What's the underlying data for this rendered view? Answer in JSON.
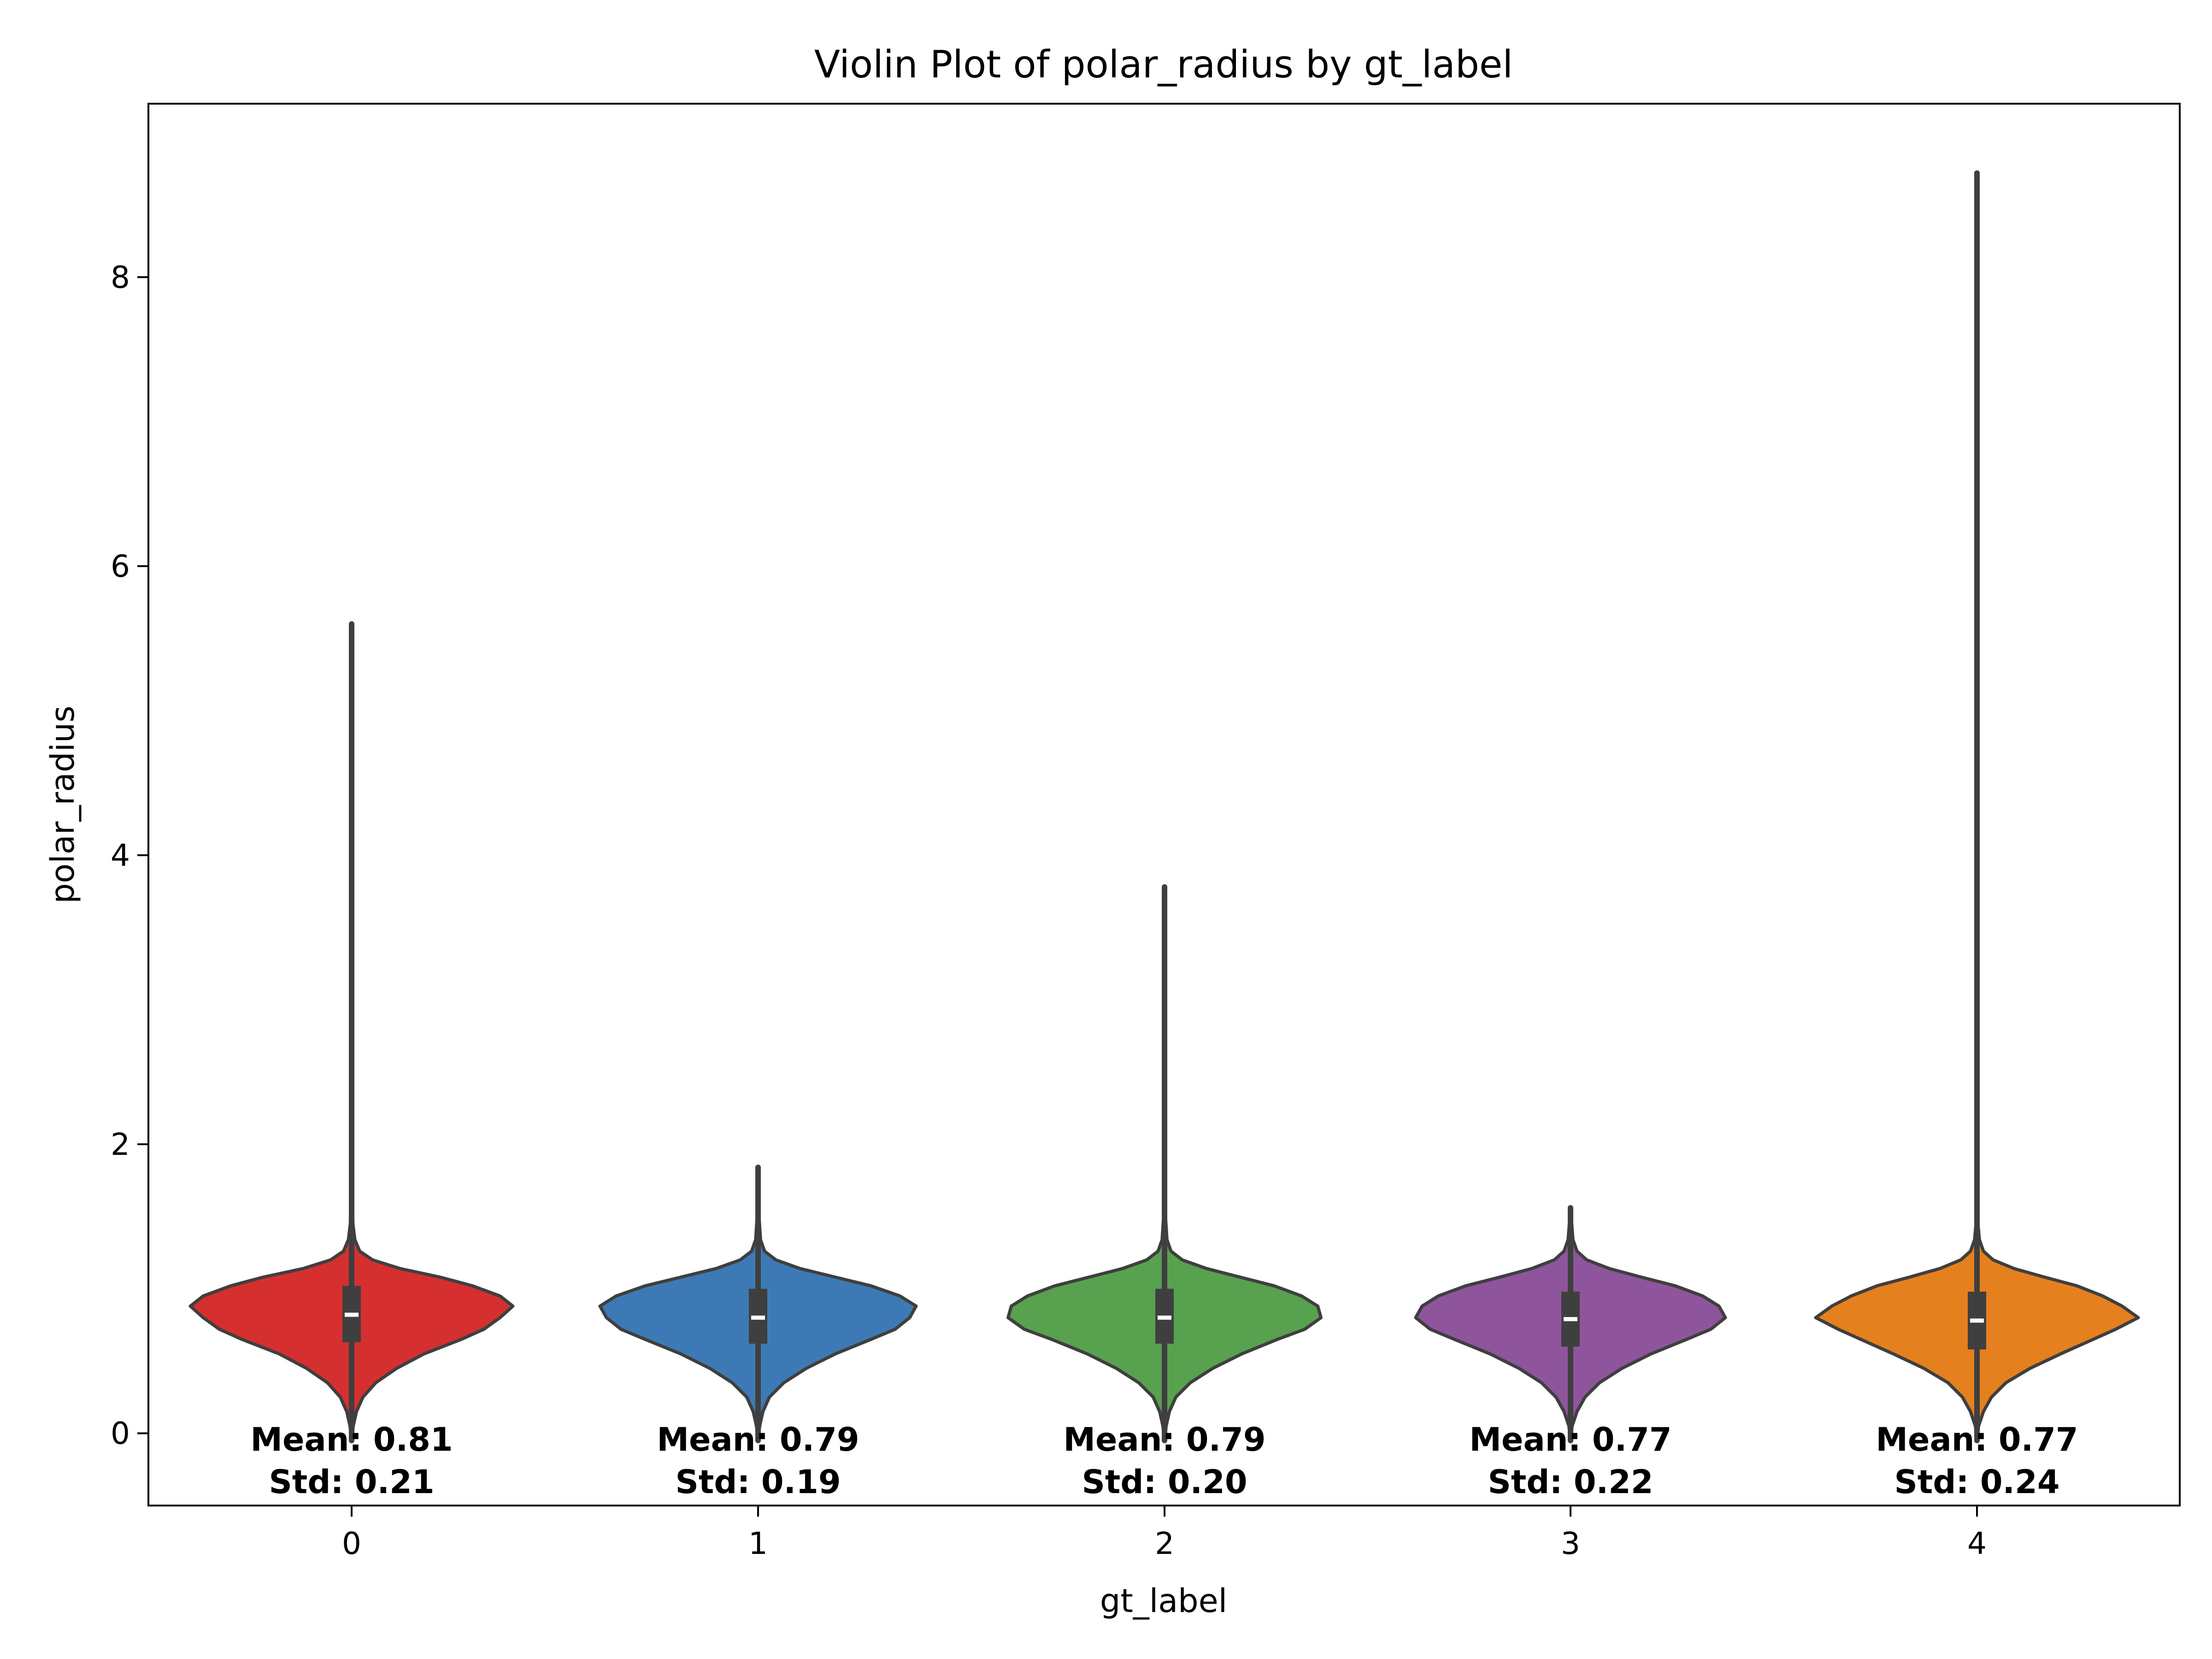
{
  "chart_data": {
    "type": "violin",
    "title": "Violin Plot of polar_radius by gt_label",
    "xlabel": "gt_label",
    "ylabel": "polar_radius",
    "categories": [
      "0",
      "1",
      "2",
      "3",
      "4"
    ],
    "ylim": [
      -0.5,
      9.2
    ],
    "yticks": [
      0,
      2,
      4,
      6,
      8
    ],
    "grid": false,
    "legend": "none",
    "violins": [
      {
        "category": "0",
        "color": "#d62f2f",
        "min": -0.05,
        "max": 5.6,
        "q1": 0.63,
        "median": 0.82,
        "q3": 1.02,
        "mean_label": "Mean: 0.81",
        "std_label": "Std: 0.21",
        "profile": [
          [
            -0.05,
            0.0
          ],
          [
            0.05,
            0.01
          ],
          [
            0.15,
            0.03
          ],
          [
            0.25,
            0.07
          ],
          [
            0.35,
            0.15
          ],
          [
            0.45,
            0.28
          ],
          [
            0.55,
            0.45
          ],
          [
            0.65,
            0.68
          ],
          [
            0.72,
            0.82
          ],
          [
            0.8,
            0.92
          ],
          [
            0.88,
            1.0
          ],
          [
            0.95,
            0.92
          ],
          [
            1.02,
            0.75
          ],
          [
            1.08,
            0.55
          ],
          [
            1.14,
            0.3
          ],
          [
            1.2,
            0.13
          ],
          [
            1.26,
            0.05
          ],
          [
            1.34,
            0.02
          ],
          [
            1.45,
            0.008
          ],
          [
            1.7,
            0.004
          ],
          [
            2.5,
            0.002
          ],
          [
            4.0,
            0.0015
          ],
          [
            5.6,
            0.0
          ]
        ]
      },
      {
        "category": "1",
        "color": "#3d7ab5",
        "min": -0.05,
        "max": 1.84,
        "q1": 0.62,
        "median": 0.8,
        "q3": 1.0,
        "mean_label": "Mean: 0.79",
        "std_label": "Std: 0.19",
        "profile": [
          [
            -0.05,
            0.0
          ],
          [
            0.05,
            0.01
          ],
          [
            0.15,
            0.03
          ],
          [
            0.25,
            0.07
          ],
          [
            0.35,
            0.16
          ],
          [
            0.45,
            0.3
          ],
          [
            0.55,
            0.48
          ],
          [
            0.65,
            0.7
          ],
          [
            0.72,
            0.85
          ],
          [
            0.8,
            0.94
          ],
          [
            0.88,
            0.98
          ],
          [
            0.95,
            0.88
          ],
          [
            1.02,
            0.7
          ],
          [
            1.08,
            0.48
          ],
          [
            1.14,
            0.26
          ],
          [
            1.2,
            0.11
          ],
          [
            1.26,
            0.04
          ],
          [
            1.34,
            0.015
          ],
          [
            1.5,
            0.006
          ],
          [
            1.84,
            0.0
          ]
        ]
      },
      {
        "category": "2",
        "color": "#58a14f",
        "min": -0.05,
        "max": 3.78,
        "q1": 0.62,
        "median": 0.8,
        "q3": 1.0,
        "mean_label": "Mean: 0.79",
        "std_label": "Std: 0.20",
        "profile": [
          [
            -0.05,
            0.0
          ],
          [
            0.05,
            0.01
          ],
          [
            0.15,
            0.03
          ],
          [
            0.25,
            0.07
          ],
          [
            0.35,
            0.16
          ],
          [
            0.45,
            0.3
          ],
          [
            0.55,
            0.48
          ],
          [
            0.65,
            0.7
          ],
          [
            0.72,
            0.87
          ],
          [
            0.8,
            0.97
          ],
          [
            0.88,
            0.95
          ],
          [
            0.95,
            0.85
          ],
          [
            1.02,
            0.68
          ],
          [
            1.08,
            0.47
          ],
          [
            1.14,
            0.26
          ],
          [
            1.2,
            0.11
          ],
          [
            1.26,
            0.04
          ],
          [
            1.34,
            0.015
          ],
          [
            1.5,
            0.006
          ],
          [
            2.2,
            0.003
          ],
          [
            3.78,
            0.0
          ]
        ]
      },
      {
        "category": "3",
        "color": "#8e559c",
        "min": -0.05,
        "max": 1.56,
        "q1": 0.6,
        "median": 0.79,
        "q3": 0.98,
        "mean_label": "Mean: 0.77",
        "std_label": "Std: 0.22",
        "profile": [
          [
            -0.05,
            0.0
          ],
          [
            0.05,
            0.01
          ],
          [
            0.15,
            0.04
          ],
          [
            0.25,
            0.09
          ],
          [
            0.35,
            0.18
          ],
          [
            0.45,
            0.32
          ],
          [
            0.55,
            0.5
          ],
          [
            0.65,
            0.72
          ],
          [
            0.72,
            0.87
          ],
          [
            0.8,
            0.96
          ],
          [
            0.88,
            0.92
          ],
          [
            0.95,
            0.82
          ],
          [
            1.02,
            0.65
          ],
          [
            1.08,
            0.44
          ],
          [
            1.14,
            0.24
          ],
          [
            1.2,
            0.1
          ],
          [
            1.26,
            0.04
          ],
          [
            1.34,
            0.015
          ],
          [
            1.56,
            0.0
          ]
        ]
      },
      {
        "category": "4",
        "color": "#e5801f",
        "min": -0.05,
        "max": 8.72,
        "q1": 0.58,
        "median": 0.78,
        "q3": 0.98,
        "mean_label": "Mean: 0.77",
        "std_label": "Std: 0.24",
        "profile": [
          [
            -0.05,
            0.0
          ],
          [
            0.05,
            0.01
          ],
          [
            0.15,
            0.04
          ],
          [
            0.25,
            0.09
          ],
          [
            0.35,
            0.18
          ],
          [
            0.45,
            0.33
          ],
          [
            0.55,
            0.52
          ],
          [
            0.65,
            0.72
          ],
          [
            0.72,
            0.86
          ],
          [
            0.8,
            1.0
          ],
          [
            0.88,
            0.9
          ],
          [
            0.95,
            0.78
          ],
          [
            1.02,
            0.62
          ],
          [
            1.08,
            0.42
          ],
          [
            1.14,
            0.23
          ],
          [
            1.2,
            0.1
          ],
          [
            1.26,
            0.04
          ],
          [
            1.34,
            0.015
          ],
          [
            1.45,
            0.006
          ],
          [
            2.0,
            0.003
          ],
          [
            4.0,
            0.002
          ],
          [
            8.72,
            0.0
          ]
        ]
      }
    ]
  }
}
